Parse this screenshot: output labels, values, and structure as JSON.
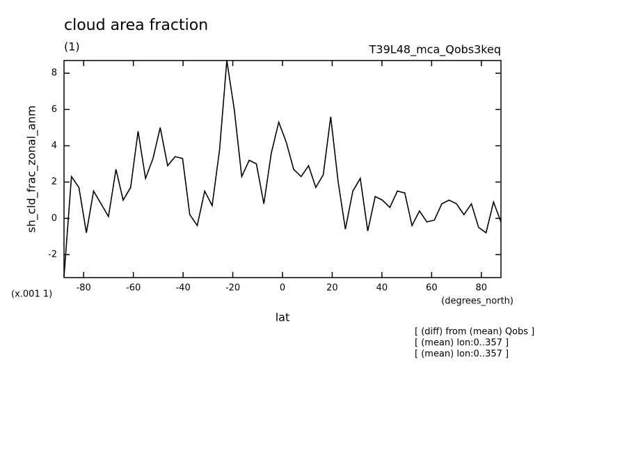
{
  "chart_data": {
    "type": "line",
    "title": "cloud area fraction",
    "subtitle": "(1)",
    "run_label": "T39L48_mca_Qobs3keq",
    "y_label": "sh_cld_frac_zonal_anm",
    "y_scale_note": "(x.001 1)",
    "x_units": "(degrees_north)",
    "x_label": "lat",
    "notes": [
      "[ (diff) from (mean) Qobs ]",
      "[ (mean) lon:0..357 ]",
      "[ (mean) lon:0..357 ]"
    ],
    "x": [
      -87.9,
      -84.9,
      -81.9,
      -78.9,
      -76.0,
      -73.0,
      -70.0,
      -67.0,
      -64.1,
      -61.1,
      -58.1,
      -55.1,
      -52.1,
      -49.2,
      -46.2,
      -43.2,
      -40.2,
      -37.3,
      -34.3,
      -31.3,
      -28.3,
      -25.3,
      -22.4,
      -19.4,
      -16.4,
      -13.4,
      -10.5,
      -7.5,
      -4.5,
      -1.5,
      1.5,
      4.5,
      7.5,
      10.5,
      13.4,
      16.4,
      19.4,
      22.4,
      25.3,
      28.3,
      31.3,
      34.3,
      37.3,
      40.2,
      43.2,
      46.2,
      49.2,
      52.1,
      55.1,
      58.1,
      61.1,
      64.1,
      67.0,
      70.0,
      73.0,
      76.0,
      78.9,
      81.9,
      84.9,
      87.9
    ],
    "series": [
      {
        "name": "sh_cld_frac_zonal_anm",
        "color": "#000000",
        "values": [
          -3.2,
          2.3,
          1.7,
          -0.8,
          1.5,
          0.8,
          0.1,
          2.7,
          1.0,
          1.7,
          4.8,
          2.2,
          3.3,
          5.0,
          2.9,
          3.4,
          3.3,
          0.2,
          -0.4,
          1.5,
          0.7,
          3.8,
          8.7,
          6.0,
          2.3,
          3.2,
          3.0,
          0.8,
          3.6,
          5.3,
          4.2,
          2.7,
          2.3,
          2.9,
          1.7,
          2.4,
          5.6,
          2.0,
          -0.6,
          1.5,
          2.2,
          -0.7,
          1.2,
          1.0,
          0.6,
          1.5,
          1.4,
          -0.4,
          0.4,
          -0.2,
          -0.1,
          0.8,
          1.0,
          0.8,
          0.2,
          0.8,
          -0.5,
          -0.8,
          0.9,
          -0.2
        ]
      }
    ],
    "xlim": [
      -87.9,
      87.9
    ],
    "ylim": [
      -3.27,
      8.7
    ],
    "xticks": [
      -80,
      -60,
      -40,
      -20,
      0,
      20,
      40,
      60,
      80
    ],
    "yticks": [
      -2,
      0,
      2,
      4,
      6,
      8
    ],
    "grid": false
  }
}
